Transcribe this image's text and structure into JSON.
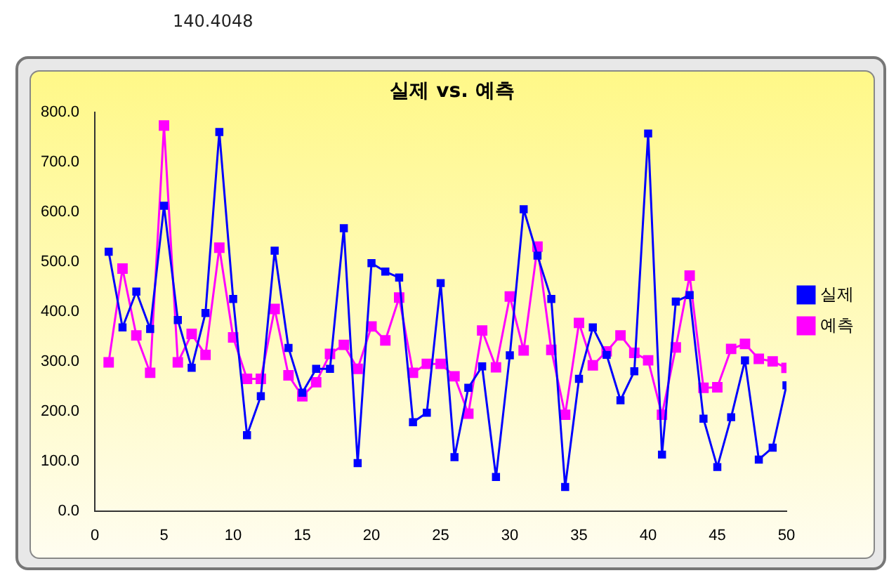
{
  "chart_data": {
    "type": "line",
    "title": "실제 vs. 예측",
    "annotations": [
      "140.4048"
    ],
    "x": [
      1,
      2,
      3,
      4,
      5,
      6,
      7,
      8,
      9,
      10,
      11,
      12,
      13,
      14,
      15,
      16,
      17,
      18,
      19,
      20,
      21,
      22,
      23,
      24,
      25,
      26,
      27,
      28,
      29,
      30,
      31,
      32,
      33,
      34,
      35,
      36,
      37,
      38,
      39,
      40,
      41,
      42,
      43,
      44,
      45,
      46,
      47,
      48,
      49,
      50
    ],
    "series": [
      {
        "name": "실제",
        "color": "#0000ff",
        "values": [
          520,
          368,
          440,
          365,
          612,
          383,
          287,
          397,
          760,
          425,
          152,
          230,
          522,
          327,
          237,
          285,
          285,
          567,
          96,
          497,
          480,
          468,
          178,
          197,
          457,
          108,
          247,
          290,
          68,
          312,
          605,
          512,
          425,
          48,
          265,
          368,
          313,
          222,
          280,
          757,
          113,
          420,
          433,
          185,
          88,
          188,
          302,
          103,
          127,
          252
        ]
      },
      {
        "name": "예측",
        "color": "#ff00ff",
        "values": [
          298,
          486,
          352,
          277,
          773,
          298,
          355,
          313,
          528,
          348,
          265,
          265,
          405,
          272,
          230,
          258,
          315,
          333,
          285,
          370,
          342,
          428,
          277,
          295,
          295,
          270,
          195,
          362,
          288,
          430,
          322,
          530,
          323,
          193,
          377,
          292,
          320,
          352,
          317,
          302,
          193,
          328,
          472,
          247,
          248,
          325,
          335,
          305,
          300,
          287
        ]
      }
    ],
    "xlim": [
      0,
      50
    ],
    "xticks": [
      0,
      5,
      10,
      15,
      20,
      25,
      30,
      35,
      40,
      45,
      50
    ],
    "ylim": [
      0,
      800
    ],
    "yticks": [
      {
        "value": 0,
        "label": "0.0"
      },
      {
        "value": 100,
        "label": "100.0"
      },
      {
        "value": 200,
        "label": "200.0"
      },
      {
        "value": 300,
        "label": "300.0"
      },
      {
        "value": 400,
        "label": "400.0"
      },
      {
        "value": 500,
        "label": "500.0"
      },
      {
        "value": 600,
        "label": "600.0"
      },
      {
        "value": 700,
        "label": "700.0"
      },
      {
        "value": 800,
        "label": "800.0"
      }
    ],
    "grid": false,
    "legend": "right",
    "marker": "square",
    "line_style": "solid"
  }
}
